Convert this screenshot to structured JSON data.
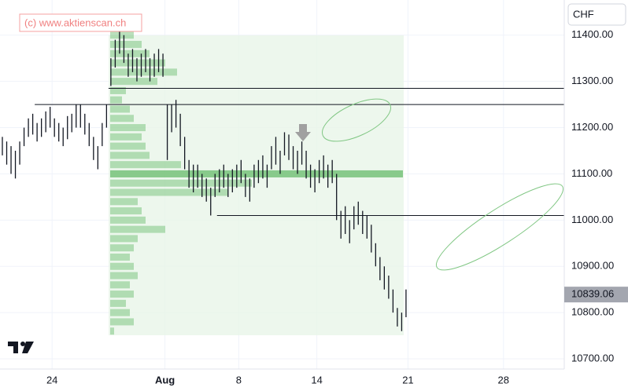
{
  "chart_data": {
    "type": "ohlc",
    "watermark": "(c) www.aktienscan.ch",
    "currency": "CHF",
    "x": [
      0,
      1,
      2,
      3,
      4,
      5,
      6,
      7,
      8,
      9,
      10,
      11,
      12,
      13,
      14,
      15,
      16,
      17,
      18,
      19,
      20,
      21,
      22,
      23,
      24,
      25,
      26,
      27,
      28,
      29,
      30,
      31,
      32,
      33,
      34,
      35,
      36,
      37,
      38,
      39,
      40,
      41,
      42,
      43,
      44,
      45,
      46,
      47,
      48,
      49,
      50,
      51,
      52,
      53,
      54,
      55,
      56,
      57,
      58,
      59,
      60,
      61,
      62,
      63,
      64,
      65,
      66,
      67,
      68,
      69,
      70,
      71,
      72,
      73,
      74,
      75,
      76,
      77,
      78,
      79,
      80,
      81,
      82,
      83,
      84,
      85,
      86,
      87,
      88,
      89,
      90,
      91,
      92,
      93
    ],
    "low": [
      11140,
      11120,
      11100,
      11090,
      11120,
      11160,
      11180,
      11185,
      11170,
      11180,
      11190,
      11200,
      11180,
      11170,
      11160,
      11175,
      11190,
      11200,
      11200,
      11185,
      11160,
      11130,
      11110,
      11160,
      11200,
      11290,
      11330,
      11360,
      11340,
      11310,
      11320,
      11300,
      11310,
      11320,
      11300,
      11310,
      11320,
      11310,
      11130,
      11190,
      11200,
      11160,
      11110,
      11070,
      11060,
      11070,
      11050,
      11040,
      11010,
      11050,
      11060,
      11070,
      11050,
      11060,
      11070,
      11080,
      11050,
      11040,
      11070,
      11080,
      11090,
      11070,
      11110,
      11120,
      11100,
      11140,
      11130,
      11110,
      11100,
      11120,
      11090,
      11070,
      11060,
      11080,
      11090,
      11070,
      11080,
      11000,
      10960,
      10970,
      10950,
      10980,
      10990,
      10970,
      10960,
      10930,
      10900,
      10870,
      10850,
      10830,
      10800,
      10770,
      10760,
      10790
    ],
    "high": [
      11180,
      11170,
      11160,
      11150,
      11170,
      11200,
      11220,
      11230,
      11210,
      11220,
      11235,
      11245,
      11220,
      11210,
      11200,
      11225,
      11230,
      11250,
      11250,
      11230,
      11210,
      11180,
      11160,
      11210,
      11250,
      11350,
      11390,
      11410,
      11400,
      11360,
      11370,
      11350,
      11360,
      11370,
      11350,
      11360,
      11370,
      11360,
      11250,
      11250,
      11260,
      11230,
      11180,
      11130,
      11120,
      11120,
      11100,
      11090,
      11070,
      11100,
      11110,
      11120,
      11100,
      11110,
      11120,
      11130,
      11100,
      11090,
      11120,
      11130,
      11140,
      11120,
      11160,
      11180,
      11150,
      11190,
      11185,
      11160,
      11150,
      11170,
      11150,
      11120,
      11110,
      11130,
      11140,
      11120,
      11130,
      11100,
      11020,
      11030,
      11000,
      11030,
      11040,
      11020,
      11010,
      10990,
      10950,
      10920,
      10900,
      10880,
      10850,
      10810,
      10800,
      10850
    ],
    "color": "#131722",
    "xlim": [
      0,
      130
    ],
    "xticks": [
      {
        "value": 12,
        "label": "24"
      },
      {
        "value": 38,
        "label": "Aug"
      },
      {
        "value": 55,
        "label": "8"
      },
      {
        "value": 73,
        "label": "14"
      },
      {
        "value": 94,
        "label": "21"
      },
      {
        "value": 116,
        "label": "28"
      }
    ],
    "ylim": [
      10678,
      11476
    ],
    "yticks": [
      {
        "value": 10700,
        "label": "10700.00"
      },
      {
        "value": 10800,
        "label": "10800.00"
      },
      {
        "value": 10900,
        "label": "10900.00"
      },
      {
        "value": 11000,
        "label": "11000.00"
      },
      {
        "value": 11100,
        "label": "11100.00"
      },
      {
        "value": 11200,
        "label": "11200.00"
      },
      {
        "value": 11300,
        "label": "11300.00"
      },
      {
        "value": 11400,
        "label": "11400.00"
      }
    ],
    "grid": true,
    "last_price": 10839.06,
    "hlines": [
      {
        "value": 11285,
        "from_x": 25
      },
      {
        "value": 11250,
        "from_x": 8
      },
      {
        "value": 11010,
        "from_x": 50
      }
    ],
    "volume_profile": {
      "color": "#66bb6a",
      "prices": [
        10760,
        10780,
        10800,
        10820,
        10840,
        10860,
        10880,
        10900,
        10920,
        10940,
        10960,
        10980,
        11000,
        11020,
        11040,
        11060,
        11080,
        11100,
        11120,
        11140,
        11160,
        11180,
        11200,
        11220,
        11240,
        11260,
        11280,
        11300,
        11320,
        11340,
        11360,
        11380,
        11400
      ],
      "values": [
        5,
        30,
        25,
        20,
        30,
        25,
        35,
        30,
        25,
        30,
        35,
        70,
        45,
        40,
        35,
        150,
        180,
        372,
        90,
        50,
        45,
        40,
        45,
        30,
        25,
        15,
        20,
        60,
        85,
        70,
        50,
        40,
        30
      ]
    }
  }
}
